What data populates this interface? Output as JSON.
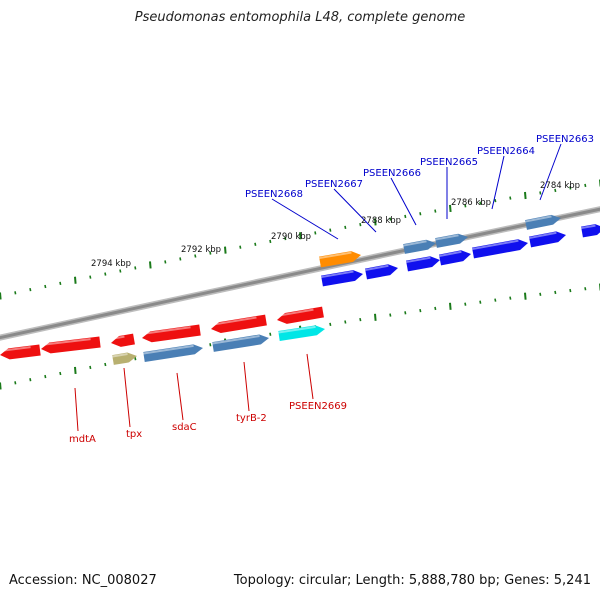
{
  "header": {
    "title": "Pseudomonas entomophila L48, complete genome"
  },
  "footer": {
    "accession": "Accession: NC_008027",
    "summary": "Topology: circular; Length: 5,888,780 bp; Genes: 5,241"
  },
  "colors": {
    "backbone": "#8a8a8a",
    "tick": "#1a7a1a",
    "forward_gene": "#1010ee",
    "reverse_gene": "#ee1010",
    "steelblue_gene": "#4a7fb5",
    "orange_gene": "#ff8c00",
    "cyan_gene": "#00e6e6",
    "olive_gene": "#b8b070",
    "label_top": "#0000cc",
    "label_bottom": "#cc0000"
  },
  "scale_labels": [
    "2794 kbp",
    "2792 kbp",
    "2790 kbp",
    "2788 kbp",
    "2786 kbp",
    "2784 kbp"
  ],
  "gene_labels_top": [
    "PSEEN2668",
    "PSEEN2667",
    "PSEEN2666",
    "PSEEN2665",
    "PSEEN2664",
    "PSEEN2663"
  ],
  "gene_labels_bottom": [
    "mdtA",
    "tpx",
    "sdaC",
    "tyrB-2",
    "PSEEN2669"
  ]
}
